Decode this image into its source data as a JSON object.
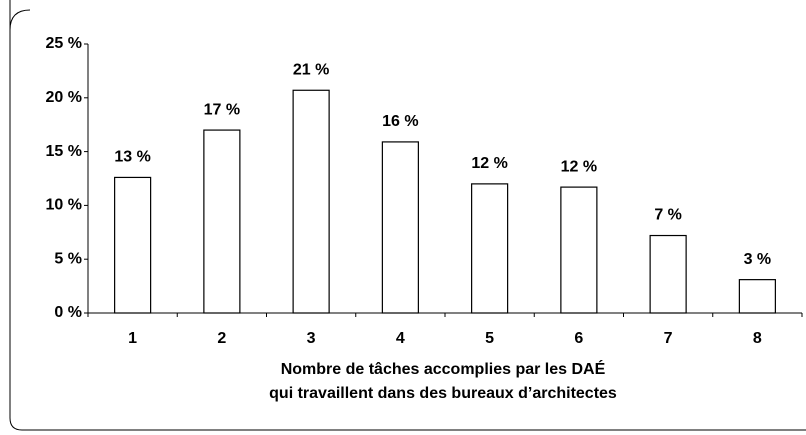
{
  "chart_data": {
    "type": "bar",
    "categories": [
      "1",
      "2",
      "3",
      "4",
      "5",
      "6",
      "7",
      "8"
    ],
    "values": [
      12.6,
      17,
      20.7,
      15.9,
      12,
      11.7,
      7.2,
      3.1
    ],
    "value_labels": [
      "13 %",
      "17 %",
      "21 %",
      "16 %",
      "12 %",
      "12 %",
      "7 %",
      "3 %"
    ],
    "color": "#ffffff",
    "x_label": [
      "Nombre de tâches accomplies par les DAÉ",
      "qui travaillent dans des bureaux d’architectes"
    ],
    "ylim": [
      0,
      25
    ],
    "yticks": [
      {
        "value": 0,
        "label": "0 %"
      },
      {
        "value": 5,
        "label": "5 %"
      },
      {
        "value": 10,
        "label": "10 %"
      },
      {
        "value": 15,
        "label": "15 %"
      },
      {
        "value": 20,
        "label": "20 %"
      },
      {
        "value": 25,
        "label": "25 %"
      }
    ],
    "grid": false
  }
}
